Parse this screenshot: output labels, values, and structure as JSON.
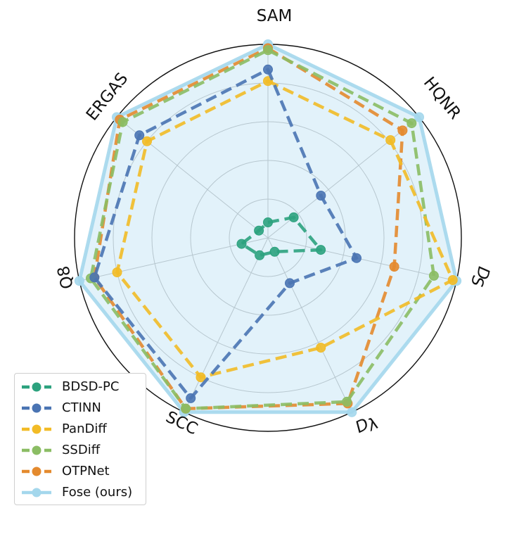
{
  "chart_data": {
    "type": "radar",
    "axes": [
      "SAM",
      "HQNR",
      "D_S",
      "D_λ",
      "SCC",
      "Q8",
      "ERGAS"
    ],
    "axis_label_text": {
      "SAM": "SAM",
      "HQNR": "HQNR",
      "D_S": "D",
      "D_S_sub": "S",
      "D_λ": "D",
      "D_λ_sub": "λ",
      "SCC": "SCC",
      "Q8": "Q8",
      "ERGAS": "ERGAS"
    },
    "rlim": [
      0,
      1
    ],
    "grid": true,
    "grid_rings": [
      0.2,
      0.4,
      0.6,
      0.8
    ],
    "legend_position": "lower-left",
    "series": [
      {
        "name": "BDSD-PC",
        "color": "#2ca27e",
        "dashed": true,
        "fill": false,
        "values": [
          0.08,
          0.17,
          0.28,
          0.08,
          0.1,
          0.14,
          0.06
        ]
      },
      {
        "name": "CTINN",
        "color": "#4a74b3",
        "dashed": true,
        "fill": false,
        "values": [
          0.87,
          0.35,
          0.47,
          0.26,
          0.92,
          0.92,
          0.85
        ]
      },
      {
        "name": "PanDiff",
        "color": "#f2bb26",
        "dashed": true,
        "fill": false,
        "values": [
          0.81,
          0.81,
          0.98,
          0.63,
          0.8,
          0.8,
          0.8
        ]
      },
      {
        "name": "SSDiff",
        "color": "#8bbd64",
        "dashed": true,
        "fill": false,
        "values": [
          0.97,
          0.95,
          0.88,
          0.94,
          0.98,
          0.94,
          0.96
        ]
      },
      {
        "name": "OTPNet",
        "color": "#e48a2e",
        "dashed": true,
        "fill": false,
        "values": [
          0.98,
          0.89,
          0.67,
          0.95,
          0.98,
          0.92,
          0.98
        ]
      },
      {
        "name": "Fose (ours)",
        "color": "#a4d7ec",
        "dashed": false,
        "fill": true,
        "values": [
          1.0,
          1.0,
          1.0,
          1.0,
          1.0,
          1.0,
          1.0
        ]
      }
    ]
  },
  "legend": {
    "items": [
      "BDSD-PC",
      "CTINN",
      "PanDiff",
      "SSDiff",
      "OTPNet",
      "Fose (ours)"
    ]
  }
}
